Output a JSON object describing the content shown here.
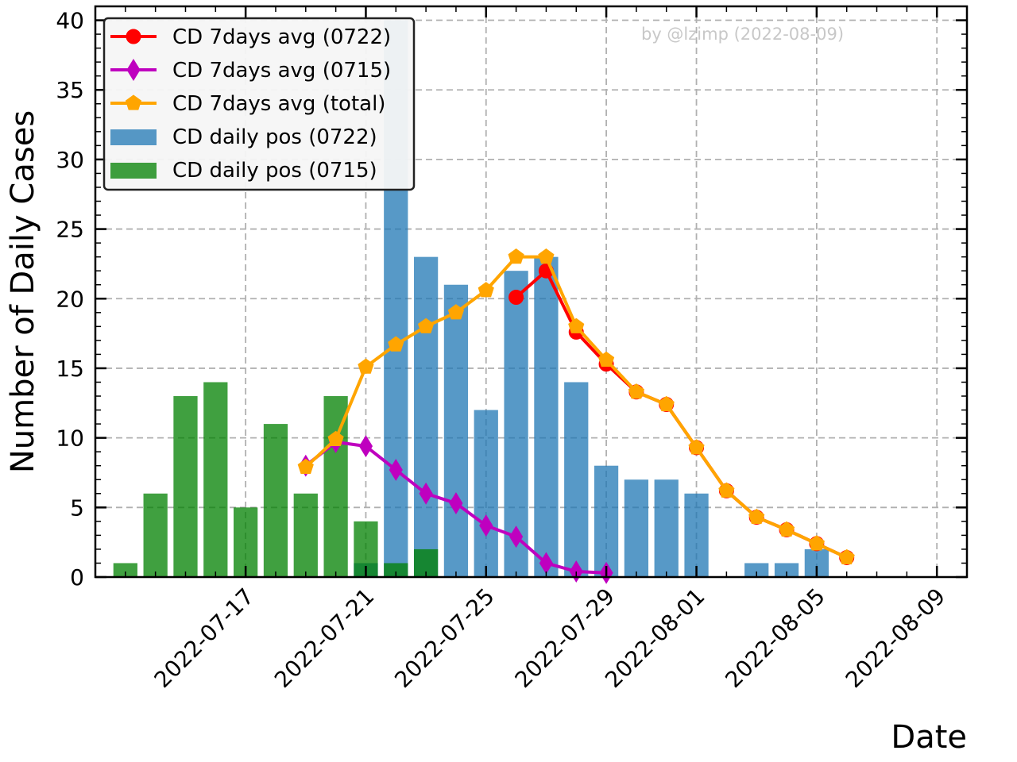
{
  "chart_data": {
    "type": "bar+line",
    "xlabel": "Date",
    "ylabel": "Number of Daily Cases",
    "ylim": [
      0,
      41
    ],
    "xlim": [
      "2022-07-12",
      "2022-08-10"
    ],
    "grid": true,
    "legend_position": "top-left",
    "y_ticks": [
      0,
      5,
      10,
      15,
      20,
      25,
      30,
      35,
      40
    ],
    "x_tick_labels": [
      "2022-07-17",
      "2022-07-21",
      "2022-07-25",
      "2022-07-29",
      "2022-08-01",
      "2022-08-05",
      "2022-08-09"
    ],
    "watermark": "by @lzimp (2022-08-09)",
    "bar_series": [
      {
        "name": "CD daily pos (0722)",
        "color": "#1f77b4",
        "points": [
          {
            "x": "2022-07-21",
            "y": 1
          },
          {
            "x": "2022-07-22",
            "y": 40
          },
          {
            "x": "2022-07-23",
            "y": 23
          },
          {
            "x": "2022-07-24",
            "y": 21
          },
          {
            "x": "2022-07-25",
            "y": 12
          },
          {
            "x": "2022-07-26",
            "y": 22
          },
          {
            "x": "2022-07-27",
            "y": 23
          },
          {
            "x": "2022-07-28",
            "y": 14
          },
          {
            "x": "2022-07-29",
            "y": 8
          },
          {
            "x": "2022-07-30",
            "y": 7
          },
          {
            "x": "2022-07-31",
            "y": 7
          },
          {
            "x": "2022-08-01",
            "y": 6
          },
          {
            "x": "2022-08-03",
            "y": 1
          },
          {
            "x": "2022-08-04",
            "y": 1
          },
          {
            "x": "2022-08-05",
            "y": 2
          }
        ]
      },
      {
        "name": "CD daily pos (0715)",
        "color": "#008000",
        "points": [
          {
            "x": "2022-07-13",
            "y": 1
          },
          {
            "x": "2022-07-14",
            "y": 6
          },
          {
            "x": "2022-07-15",
            "y": 13
          },
          {
            "x": "2022-07-16",
            "y": 14
          },
          {
            "x": "2022-07-17",
            "y": 5
          },
          {
            "x": "2022-07-18",
            "y": 11
          },
          {
            "x": "2022-07-19",
            "y": 6
          },
          {
            "x": "2022-07-20",
            "y": 13
          },
          {
            "x": "2022-07-21",
            "y": 4
          },
          {
            "x": "2022-07-22",
            "y": 1
          },
          {
            "x": "2022-07-23",
            "y": 2
          }
        ]
      }
    ],
    "line_series": [
      {
        "name": "CD 7days avg (0722)",
        "color": "#ff0000",
        "marker": "circle",
        "points": [
          {
            "x": "2022-07-26",
            "y": 20.1
          },
          {
            "x": "2022-07-27",
            "y": 22.0
          },
          {
            "x": "2022-07-28",
            "y": 17.6
          },
          {
            "x": "2022-07-29",
            "y": 15.3
          },
          {
            "x": "2022-07-30",
            "y": 13.3
          },
          {
            "x": "2022-07-31",
            "y": 12.4
          },
          {
            "x": "2022-08-01",
            "y": 9.3
          },
          {
            "x": "2022-08-02",
            "y": 6.2
          },
          {
            "x": "2022-08-03",
            "y": 4.3
          },
          {
            "x": "2022-08-04",
            "y": 3.4
          },
          {
            "x": "2022-08-05",
            "y": 2.4
          },
          {
            "x": "2022-08-06",
            "y": 1.4
          }
        ]
      },
      {
        "name": "CD 7days avg (0715)",
        "color": "#bf00bf",
        "marker": "diamond",
        "points": [
          {
            "x": "2022-07-19",
            "y": 8.0
          },
          {
            "x": "2022-07-20",
            "y": 9.7
          },
          {
            "x": "2022-07-21",
            "y": 9.4
          },
          {
            "x": "2022-07-22",
            "y": 7.7
          },
          {
            "x": "2022-07-23",
            "y": 6.0
          },
          {
            "x": "2022-07-24",
            "y": 5.3
          },
          {
            "x": "2022-07-25",
            "y": 3.7
          },
          {
            "x": "2022-07-26",
            "y": 2.9
          },
          {
            "x": "2022-07-27",
            "y": 1.0
          },
          {
            "x": "2022-07-28",
            "y": 0.4
          },
          {
            "x": "2022-07-29",
            "y": 0.3
          }
        ]
      },
      {
        "name": "CD 7days avg (total)",
        "color": "#ffa500",
        "marker": "pentagon",
        "points": [
          {
            "x": "2022-07-19",
            "y": 7.9
          },
          {
            "x": "2022-07-20",
            "y": 9.9
          },
          {
            "x": "2022-07-21",
            "y": 15.1
          },
          {
            "x": "2022-07-22",
            "y": 16.7
          },
          {
            "x": "2022-07-23",
            "y": 18.0
          },
          {
            "x": "2022-07-24",
            "y": 19.0
          },
          {
            "x": "2022-07-25",
            "y": 20.6
          },
          {
            "x": "2022-07-26",
            "y": 23.0
          },
          {
            "x": "2022-07-27",
            "y": 23.0
          },
          {
            "x": "2022-07-28",
            "y": 18.0
          },
          {
            "x": "2022-07-29",
            "y": 15.6
          },
          {
            "x": "2022-07-30",
            "y": 13.3
          },
          {
            "x": "2022-07-31",
            "y": 12.4
          },
          {
            "x": "2022-08-01",
            "y": 9.3
          },
          {
            "x": "2022-08-02",
            "y": 6.2
          },
          {
            "x": "2022-08-03",
            "y": 4.3
          },
          {
            "x": "2022-08-04",
            "y": 3.4
          },
          {
            "x": "2022-08-05",
            "y": 2.4
          },
          {
            "x": "2022-08-06",
            "y": 1.4
          }
        ]
      }
    ],
    "legend": [
      {
        "label": "CD 7days avg (0722)",
        "color": "#ff0000",
        "kind": "line",
        "marker": "circle"
      },
      {
        "label": "CD 7days avg (0715)",
        "color": "#bf00bf",
        "kind": "line",
        "marker": "diamond"
      },
      {
        "label": "CD 7days avg (total)",
        "color": "#ffa500",
        "kind": "line",
        "marker": "pentagon"
      },
      {
        "label": "CD daily pos (0722)",
        "color": "#1f77b4",
        "kind": "bar"
      },
      {
        "label": "CD daily pos (0715)",
        "color": "#008000",
        "kind": "bar"
      }
    ]
  }
}
